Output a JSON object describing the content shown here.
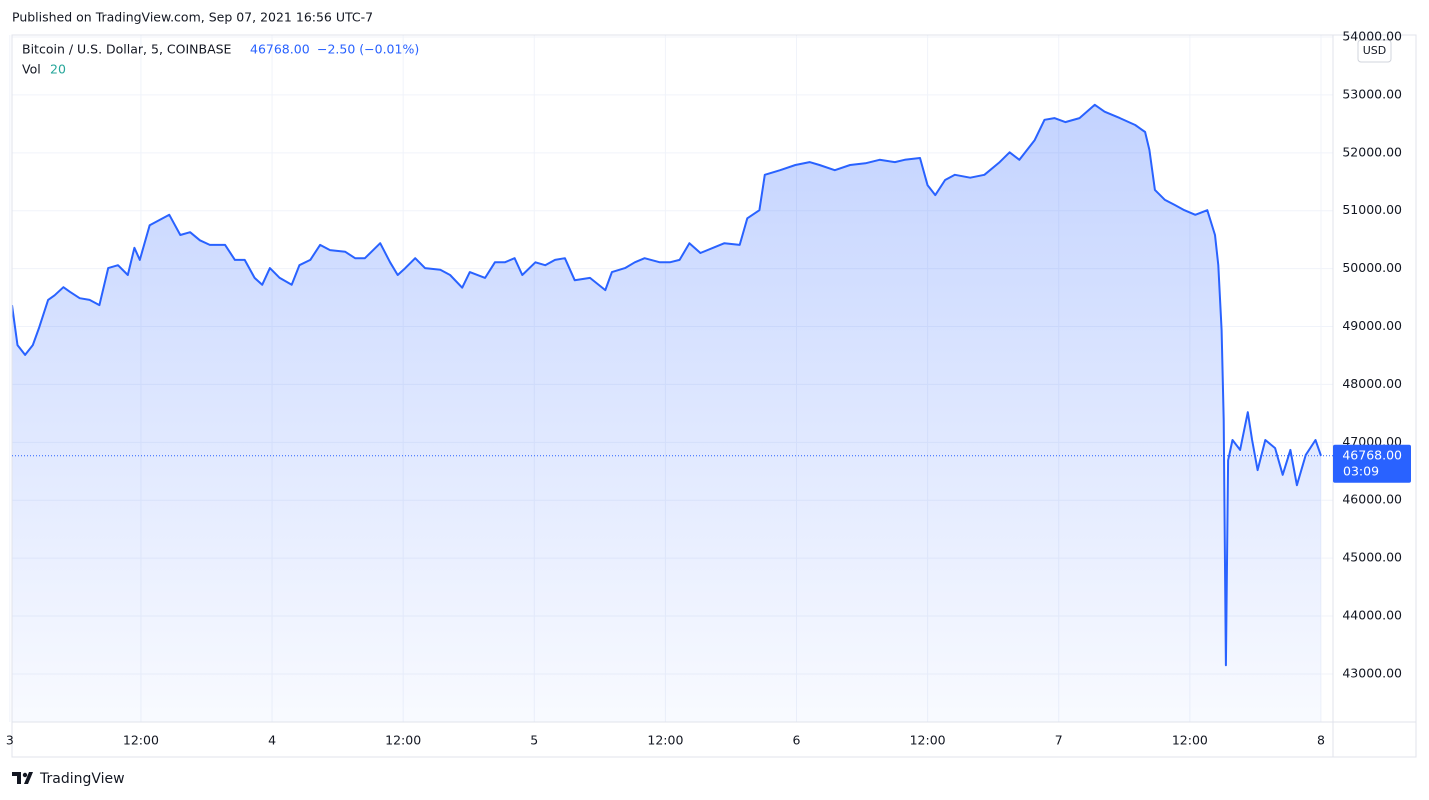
{
  "header": {
    "published": "Published on TradingView.com, Sep 07, 2021 16:56 UTC-7",
    "price": "46768.00",
    "change": "−2.50 (−0.01%)",
    "vol_label": "Vol",
    "vol_value": "20",
    "currency": "USD",
    "countdown": "03:09",
    "brand": "TradingView"
  },
  "chart_data": {
    "type": "line",
    "x": [
      0.2,
      0.7,
      1.4,
      2.1,
      2.7,
      3.5,
      4.1,
      4.9,
      5.5,
      6.4,
      7.3,
      8.2,
      9.0,
      9.9,
      10.8,
      11.4,
      11.9,
      12.8,
      13.7,
      14.6,
      15.6,
      16.5,
      17.4,
      18.3,
      19.7,
      20.6,
      21.5,
      22.4,
      23.1,
      23.8,
      24.7,
      25.8,
      26.5,
      27.5,
      28.4,
      29.3,
      30.7,
      31.6,
      32.5,
      33.9,
      34.8,
      35.5,
      36.2,
      37.1,
      38.0,
      39.4,
      40.3,
      41.4,
      42.1,
      43.5,
      44.4,
      45.3,
      46.2,
      46.9,
      48.1,
      49.0,
      49.9,
      50.8,
      51.7,
      53.1,
      54.5,
      55.1,
      56.3,
      57.2,
      58.1,
      59.5,
      60.4,
      61.3,
      62.2,
      63.2,
      64.5,
      65.4,
      66.8,
      67.5,
      68.6,
      69.1,
      70.5,
      71.9,
      73.2,
      74.1,
      75.5,
      76.9,
      78.3,
      79.6,
      81.0,
      81.9,
      83.3,
      84.0,
      84.7,
      85.6,
      86.5,
      87.9,
      89.2,
      90.6,
      91.5,
      92.4,
      93.8,
      94.7,
      95.6,
      96.6,
      97.9,
      99.3,
      100.2,
      101.6,
      103.0,
      103.9,
      104.3,
      104.8,
      105.7,
      106.6,
      107.5,
      108.5,
      109.6,
      110.3,
      110.6,
      110.9,
      111.1,
      111.3,
      111.5,
      111.9,
      112.6,
      113.3,
      113.7,
      114.2,
      114.9,
      115.8,
      116.5,
      117.2,
      117.8,
      118.6,
      119.5,
      120.0
    ],
    "series": [
      {
        "name": "Bitcoin / U.S. Dollar, 5, COINBASE",
        "color": "#2962ff",
        "values": [
          49370,
          48680,
          48510,
          48680,
          48990,
          49460,
          49540,
          49680,
          49600,
          49490,
          49460,
          49370,
          50010,
          50060,
          49890,
          50360,
          50150,
          50750,
          50840,
          50930,
          50580,
          50630,
          50490,
          50410,
          50410,
          50150,
          50150,
          49840,
          49720,
          50010,
          49840,
          49720,
          50060,
          50150,
          50410,
          50320,
          50290,
          50180,
          50180,
          50440,
          50110,
          49890,
          50010,
          50180,
          50010,
          49980,
          49890,
          49670,
          49940,
          49840,
          50110,
          50110,
          50180,
          49890,
          50110,
          50060,
          50150,
          50180,
          49800,
          49840,
          49630,
          49940,
          50010,
          50110,
          50180,
          50110,
          50110,
          50150,
          50440,
          50270,
          50370,
          50440,
          50410,
          50870,
          51010,
          51620,
          51700,
          51790,
          51840,
          51790,
          51700,
          51790,
          51820,
          51880,
          51840,
          51880,
          51910,
          51440,
          51270,
          51530,
          51620,
          51570,
          51620,
          51840,
          52010,
          51880,
          52220,
          52570,
          52600,
          52530,
          52600,
          52830,
          52710,
          52600,
          52480,
          52360,
          52050,
          51360,
          51190,
          51100,
          51010,
          50930,
          51010,
          50580,
          50060,
          48940,
          47390,
          43150,
          46690,
          47040,
          46870,
          47520,
          47040,
          46520,
          47040,
          46900,
          46440,
          46870,
          46260,
          46780,
          47040,
          46768
        ]
      }
    ],
    "xlim": [
      0.2,
      121.1
    ],
    "xticks": [
      {
        "value": 0,
        "label": "3"
      },
      {
        "value": 12,
        "label": "12:00"
      },
      {
        "value": 24,
        "label": "4"
      },
      {
        "value": 36,
        "label": "12:00"
      },
      {
        "value": 48,
        "label": "5"
      },
      {
        "value": 60,
        "label": "12:00"
      },
      {
        "value": 72,
        "label": "6"
      },
      {
        "value": 84,
        "label": "12:00"
      },
      {
        "value": 96,
        "label": "7"
      },
      {
        "value": 108,
        "label": "12:00"
      },
      {
        "value": 120,
        "label": "8"
      }
    ],
    "ylim": [
      42170,
      54035
    ],
    "yticks": [
      {
        "value": 43000,
        "label": "43000.00"
      },
      {
        "value": 44000,
        "label": "44000.00"
      },
      {
        "value": 45000,
        "label": "45000.00"
      },
      {
        "value": 46000,
        "label": "46000.00"
      },
      {
        "value": 47000,
        "label": "47000.00"
      },
      {
        "value": 48000,
        "label": "48000.00"
      },
      {
        "value": 49000,
        "label": "49000.00"
      },
      {
        "value": 50000,
        "label": "50000.00"
      },
      {
        "value": 51000,
        "label": "51000.00"
      },
      {
        "value": 52000,
        "label": "52000.00"
      },
      {
        "value": 53000,
        "label": "53000.00"
      },
      {
        "value": 54000,
        "label": "54000.00"
      }
    ],
    "grid": true
  }
}
